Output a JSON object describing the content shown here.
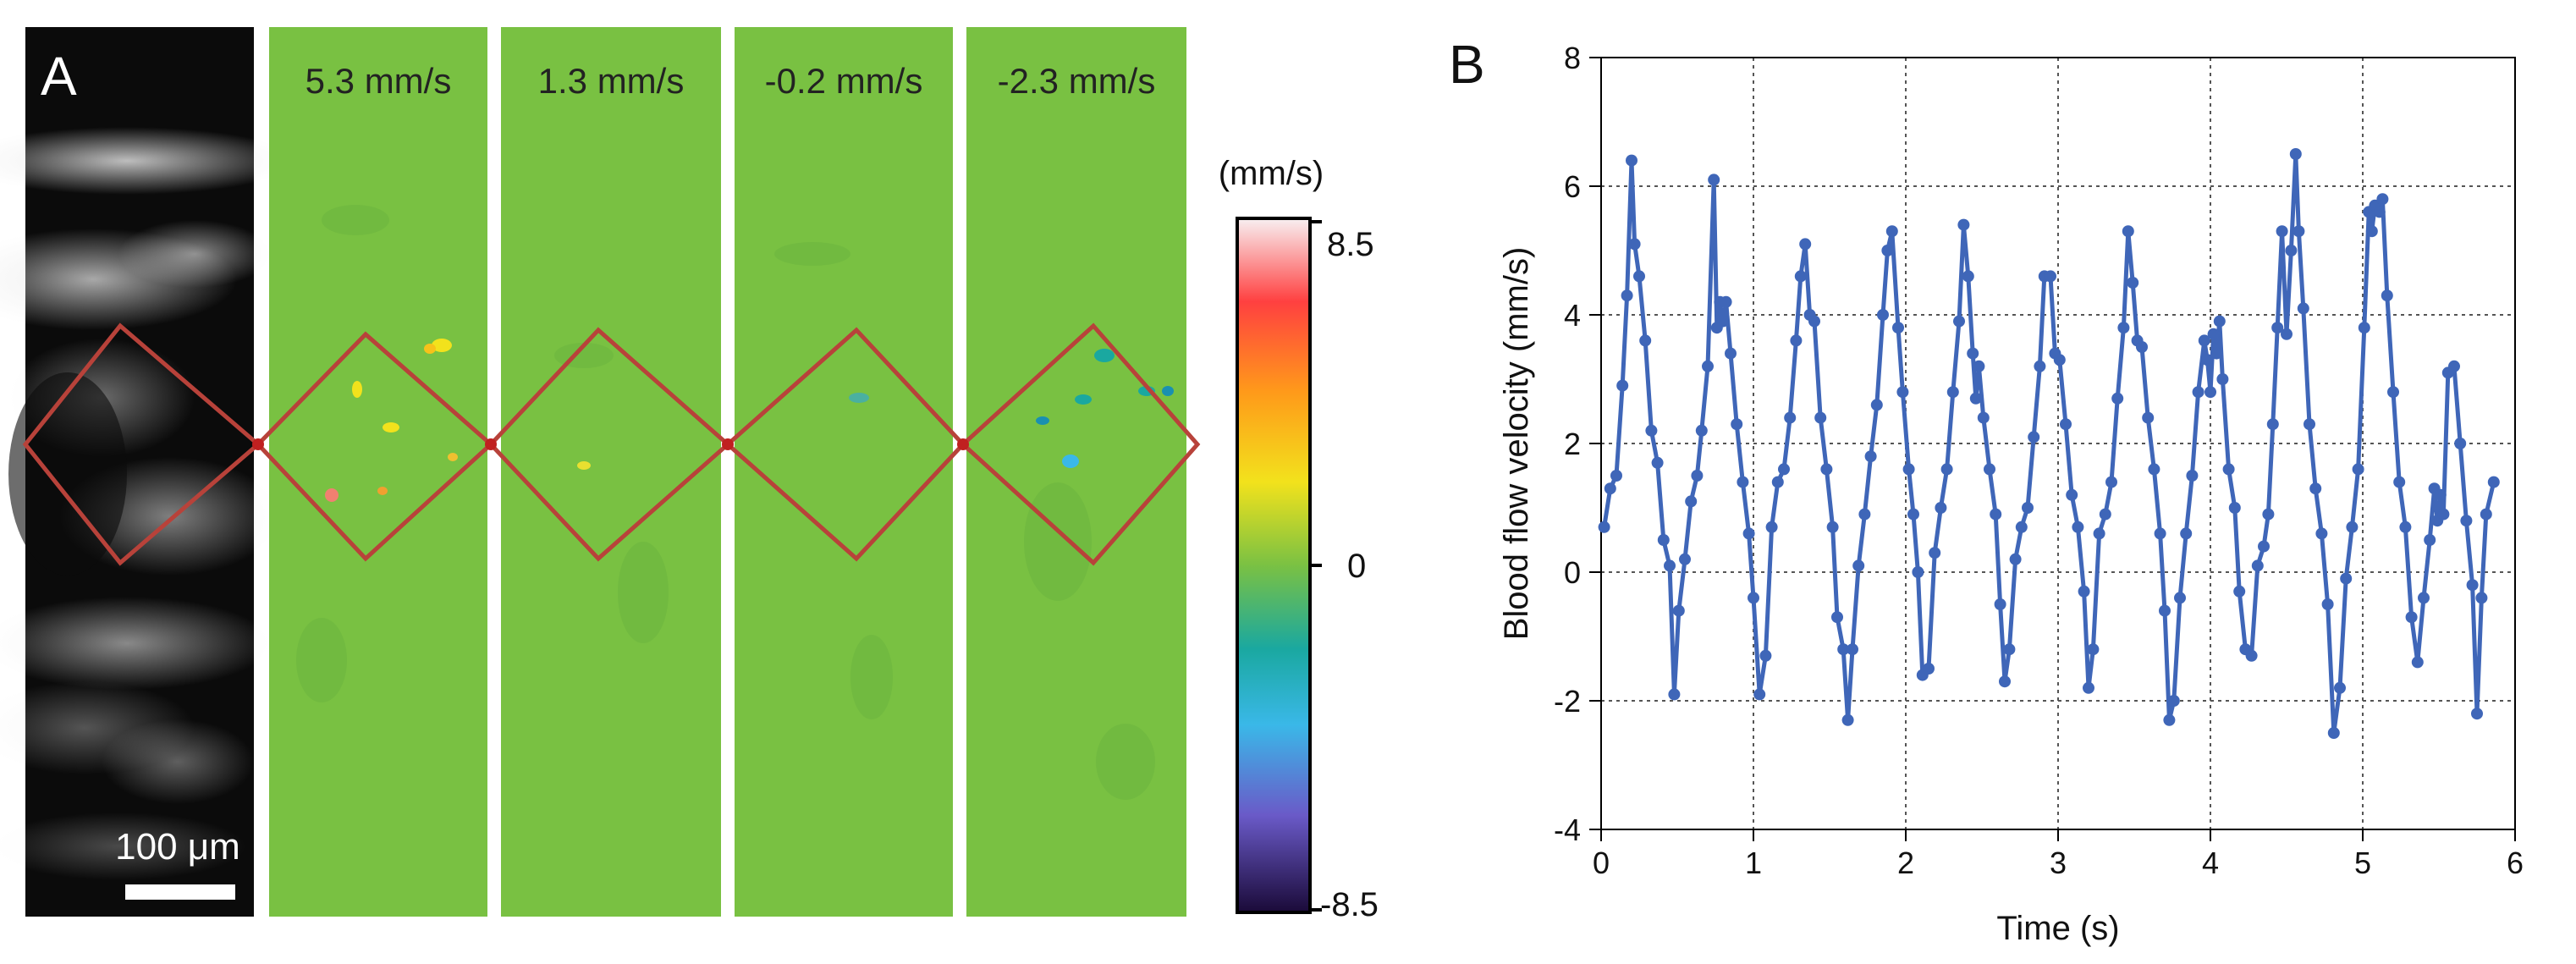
{
  "panel_a": {
    "label": "A",
    "panel_labels": [
      "5.3 mm/s",
      "1.3 mm/s",
      "-0.2 mm/s",
      "-2.3 mm/s"
    ],
    "scale_bar_label": "100 μm",
    "colorbar": {
      "unit": "(mm/s)",
      "max_label": "8.5",
      "mid_label": "0",
      "min_label": "-8.5",
      "colors": [
        "#f8f0f2",
        "#ff3030",
        "#ff9a1a",
        "#f2e21c",
        "#7ac143",
        "#1aa8a0",
        "#3ab8e8",
        "#6a5ac8",
        "#1a0a38"
      ]
    },
    "background_color": "#79c142",
    "roi_color": "#b8423a"
  },
  "panel_b": {
    "label": "B"
  },
  "chart_data": {
    "type": "line",
    "title": "",
    "xlabel": "Time (s)",
    "ylabel": "Blood flow velocity (mm/s)",
    "xlim": [
      0,
      6
    ],
    "ylim": [
      -4,
      8
    ],
    "xticks": [
      "0",
      "1",
      "2",
      "3",
      "4",
      "5",
      "6"
    ],
    "yticks": [
      "-4",
      "-2",
      "0",
      "2",
      "4",
      "6",
      "8"
    ],
    "grid": true,
    "color": "#3f66b8",
    "series": [
      {
        "name": "Blood flow velocity",
        "points": [
          [
            0.02,
            0.7
          ],
          [
            0.06,
            1.3
          ],
          [
            0.1,
            1.5
          ],
          [
            0.14,
            2.9
          ],
          [
            0.17,
            4.3
          ],
          [
            0.2,
            6.4
          ],
          [
            0.22,
            5.1
          ],
          [
            0.25,
            4.6
          ],
          [
            0.29,
            3.6
          ],
          [
            0.33,
            2.2
          ],
          [
            0.37,
            1.7
          ],
          [
            0.41,
            0.5
          ],
          [
            0.45,
            0.1
          ],
          [
            0.48,
            -1.9
          ],
          [
            0.51,
            -0.6
          ],
          [
            0.55,
            0.2
          ],
          [
            0.59,
            1.1
          ],
          [
            0.63,
            1.5
          ],
          [
            0.66,
            2.2
          ],
          [
            0.7,
            3.2
          ],
          [
            0.74,
            6.1
          ],
          [
            0.76,
            3.8
          ],
          [
            0.78,
            4.2
          ],
          [
            0.8,
            3.9
          ],
          [
            0.82,
            4.2
          ],
          [
            0.85,
            3.4
          ],
          [
            0.89,
            2.3
          ],
          [
            0.93,
            1.4
          ],
          [
            0.97,
            0.6
          ],
          [
            1.0,
            -0.4
          ],
          [
            1.04,
            -1.9
          ],
          [
            1.08,
            -1.3
          ],
          [
            1.12,
            0.7
          ],
          [
            1.16,
            1.4
          ],
          [
            1.2,
            1.6
          ],
          [
            1.24,
            2.4
          ],
          [
            1.28,
            3.6
          ],
          [
            1.31,
            4.6
          ],
          [
            1.34,
            5.1
          ],
          [
            1.37,
            4.0
          ],
          [
            1.4,
            3.9
          ],
          [
            1.44,
            2.4
          ],
          [
            1.48,
            1.6
          ],
          [
            1.52,
            0.7
          ],
          [
            1.55,
            -0.7
          ],
          [
            1.59,
            -1.2
          ],
          [
            1.62,
            -2.3
          ],
          [
            1.65,
            -1.2
          ],
          [
            1.69,
            0.1
          ],
          [
            1.73,
            0.9
          ],
          [
            1.77,
            1.8
          ],
          [
            1.81,
            2.6
          ],
          [
            1.85,
            4.0
          ],
          [
            1.88,
            5.0
          ],
          [
            1.91,
            5.3
          ],
          [
            1.95,
            3.8
          ],
          [
            1.98,
            2.8
          ],
          [
            2.02,
            1.6
          ],
          [
            2.05,
            0.9
          ],
          [
            2.08,
            0.0
          ],
          [
            2.11,
            -1.6
          ],
          [
            2.15,
            -1.5
          ],
          [
            2.19,
            0.3
          ],
          [
            2.23,
            1.0
          ],
          [
            2.27,
            1.6
          ],
          [
            2.31,
            2.8
          ],
          [
            2.35,
            3.9
          ],
          [
            2.38,
            5.4
          ],
          [
            2.41,
            4.6
          ],
          [
            2.44,
            3.4
          ],
          [
            2.46,
            2.7
          ],
          [
            2.48,
            3.2
          ],
          [
            2.51,
            2.4
          ],
          [
            2.55,
            1.6
          ],
          [
            2.59,
            0.9
          ],
          [
            2.62,
            -0.5
          ],
          [
            2.65,
            -1.7
          ],
          [
            2.68,
            -1.2
          ],
          [
            2.72,
            0.2
          ],
          [
            2.76,
            0.7
          ],
          [
            2.8,
            1.0
          ],
          [
            2.84,
            2.1
          ],
          [
            2.88,
            3.2
          ],
          [
            2.91,
            4.6
          ],
          [
            2.95,
            4.6
          ],
          [
            2.98,
            3.4
          ],
          [
            3.01,
            3.3
          ],
          [
            3.05,
            2.3
          ],
          [
            3.09,
            1.2
          ],
          [
            3.13,
            0.7
          ],
          [
            3.17,
            -0.3
          ],
          [
            3.2,
            -1.8
          ],
          [
            3.23,
            -1.2
          ],
          [
            3.27,
            0.6
          ],
          [
            3.31,
            0.9
          ],
          [
            3.35,
            1.4
          ],
          [
            3.39,
            2.7
          ],
          [
            3.43,
            3.8
          ],
          [
            3.46,
            5.3
          ],
          [
            3.49,
            4.5
          ],
          [
            3.52,
            3.6
          ],
          [
            3.55,
            3.5
          ],
          [
            3.59,
            2.4
          ],
          [
            3.63,
            1.6
          ],
          [
            3.67,
            0.6
          ],
          [
            3.7,
            -0.6
          ],
          [
            3.73,
            -2.3
          ],
          [
            3.76,
            -2.0
          ],
          [
            3.8,
            -0.4
          ],
          [
            3.84,
            0.6
          ],
          [
            3.88,
            1.5
          ],
          [
            3.92,
            2.8
          ],
          [
            3.96,
            3.6
          ],
          [
            3.98,
            3.3
          ],
          [
            4.0,
            2.8
          ],
          [
            4.02,
            3.7
          ],
          [
            4.04,
            3.4
          ],
          [
            4.06,
            3.9
          ],
          [
            4.08,
            3.0
          ],
          [
            4.12,
            1.6
          ],
          [
            4.16,
            1.0
          ],
          [
            4.19,
            -0.3
          ],
          [
            4.23,
            -1.2
          ],
          [
            4.27,
            -1.3
          ],
          [
            4.31,
            0.1
          ],
          [
            4.35,
            0.4
          ],
          [
            4.38,
            0.9
          ],
          [
            4.41,
            2.3
          ],
          [
            4.44,
            3.8
          ],
          [
            4.47,
            5.3
          ],
          [
            4.5,
            3.7
          ],
          [
            4.53,
            5.0
          ],
          [
            4.56,
            6.5
          ],
          [
            4.58,
            5.3
          ],
          [
            4.61,
            4.1
          ],
          [
            4.65,
            2.3
          ],
          [
            4.69,
            1.3
          ],
          [
            4.73,
            0.6
          ],
          [
            4.77,
            -0.5
          ],
          [
            4.81,
            -2.5
          ],
          [
            4.85,
            -1.8
          ],
          [
            4.89,
            -0.1
          ],
          [
            4.93,
            0.7
          ],
          [
            4.97,
            1.6
          ],
          [
            5.01,
            3.8
          ],
          [
            5.04,
            5.6
          ],
          [
            5.06,
            5.3
          ],
          [
            5.08,
            5.7
          ],
          [
            5.11,
            5.6
          ],
          [
            5.13,
            5.8
          ],
          [
            5.16,
            4.3
          ],
          [
            5.2,
            2.8
          ],
          [
            5.24,
            1.4
          ],
          [
            5.28,
            0.7
          ],
          [
            5.32,
            -0.7
          ],
          [
            5.36,
            -1.4
          ],
          [
            5.4,
            -0.4
          ],
          [
            5.44,
            0.5
          ],
          [
            5.47,
            1.3
          ],
          [
            5.49,
            0.8
          ],
          [
            5.51,
            1.2
          ],
          [
            5.53,
            0.9
          ],
          [
            5.56,
            3.1
          ],
          [
            5.6,
            3.2
          ],
          [
            5.64,
            2.0
          ],
          [
            5.68,
            0.8
          ],
          [
            5.72,
            -0.2
          ],
          [
            5.75,
            -2.2
          ],
          [
            5.78,
            -0.4
          ],
          [
            5.81,
            0.9
          ],
          [
            5.86,
            1.4
          ]
        ]
      }
    ]
  }
}
